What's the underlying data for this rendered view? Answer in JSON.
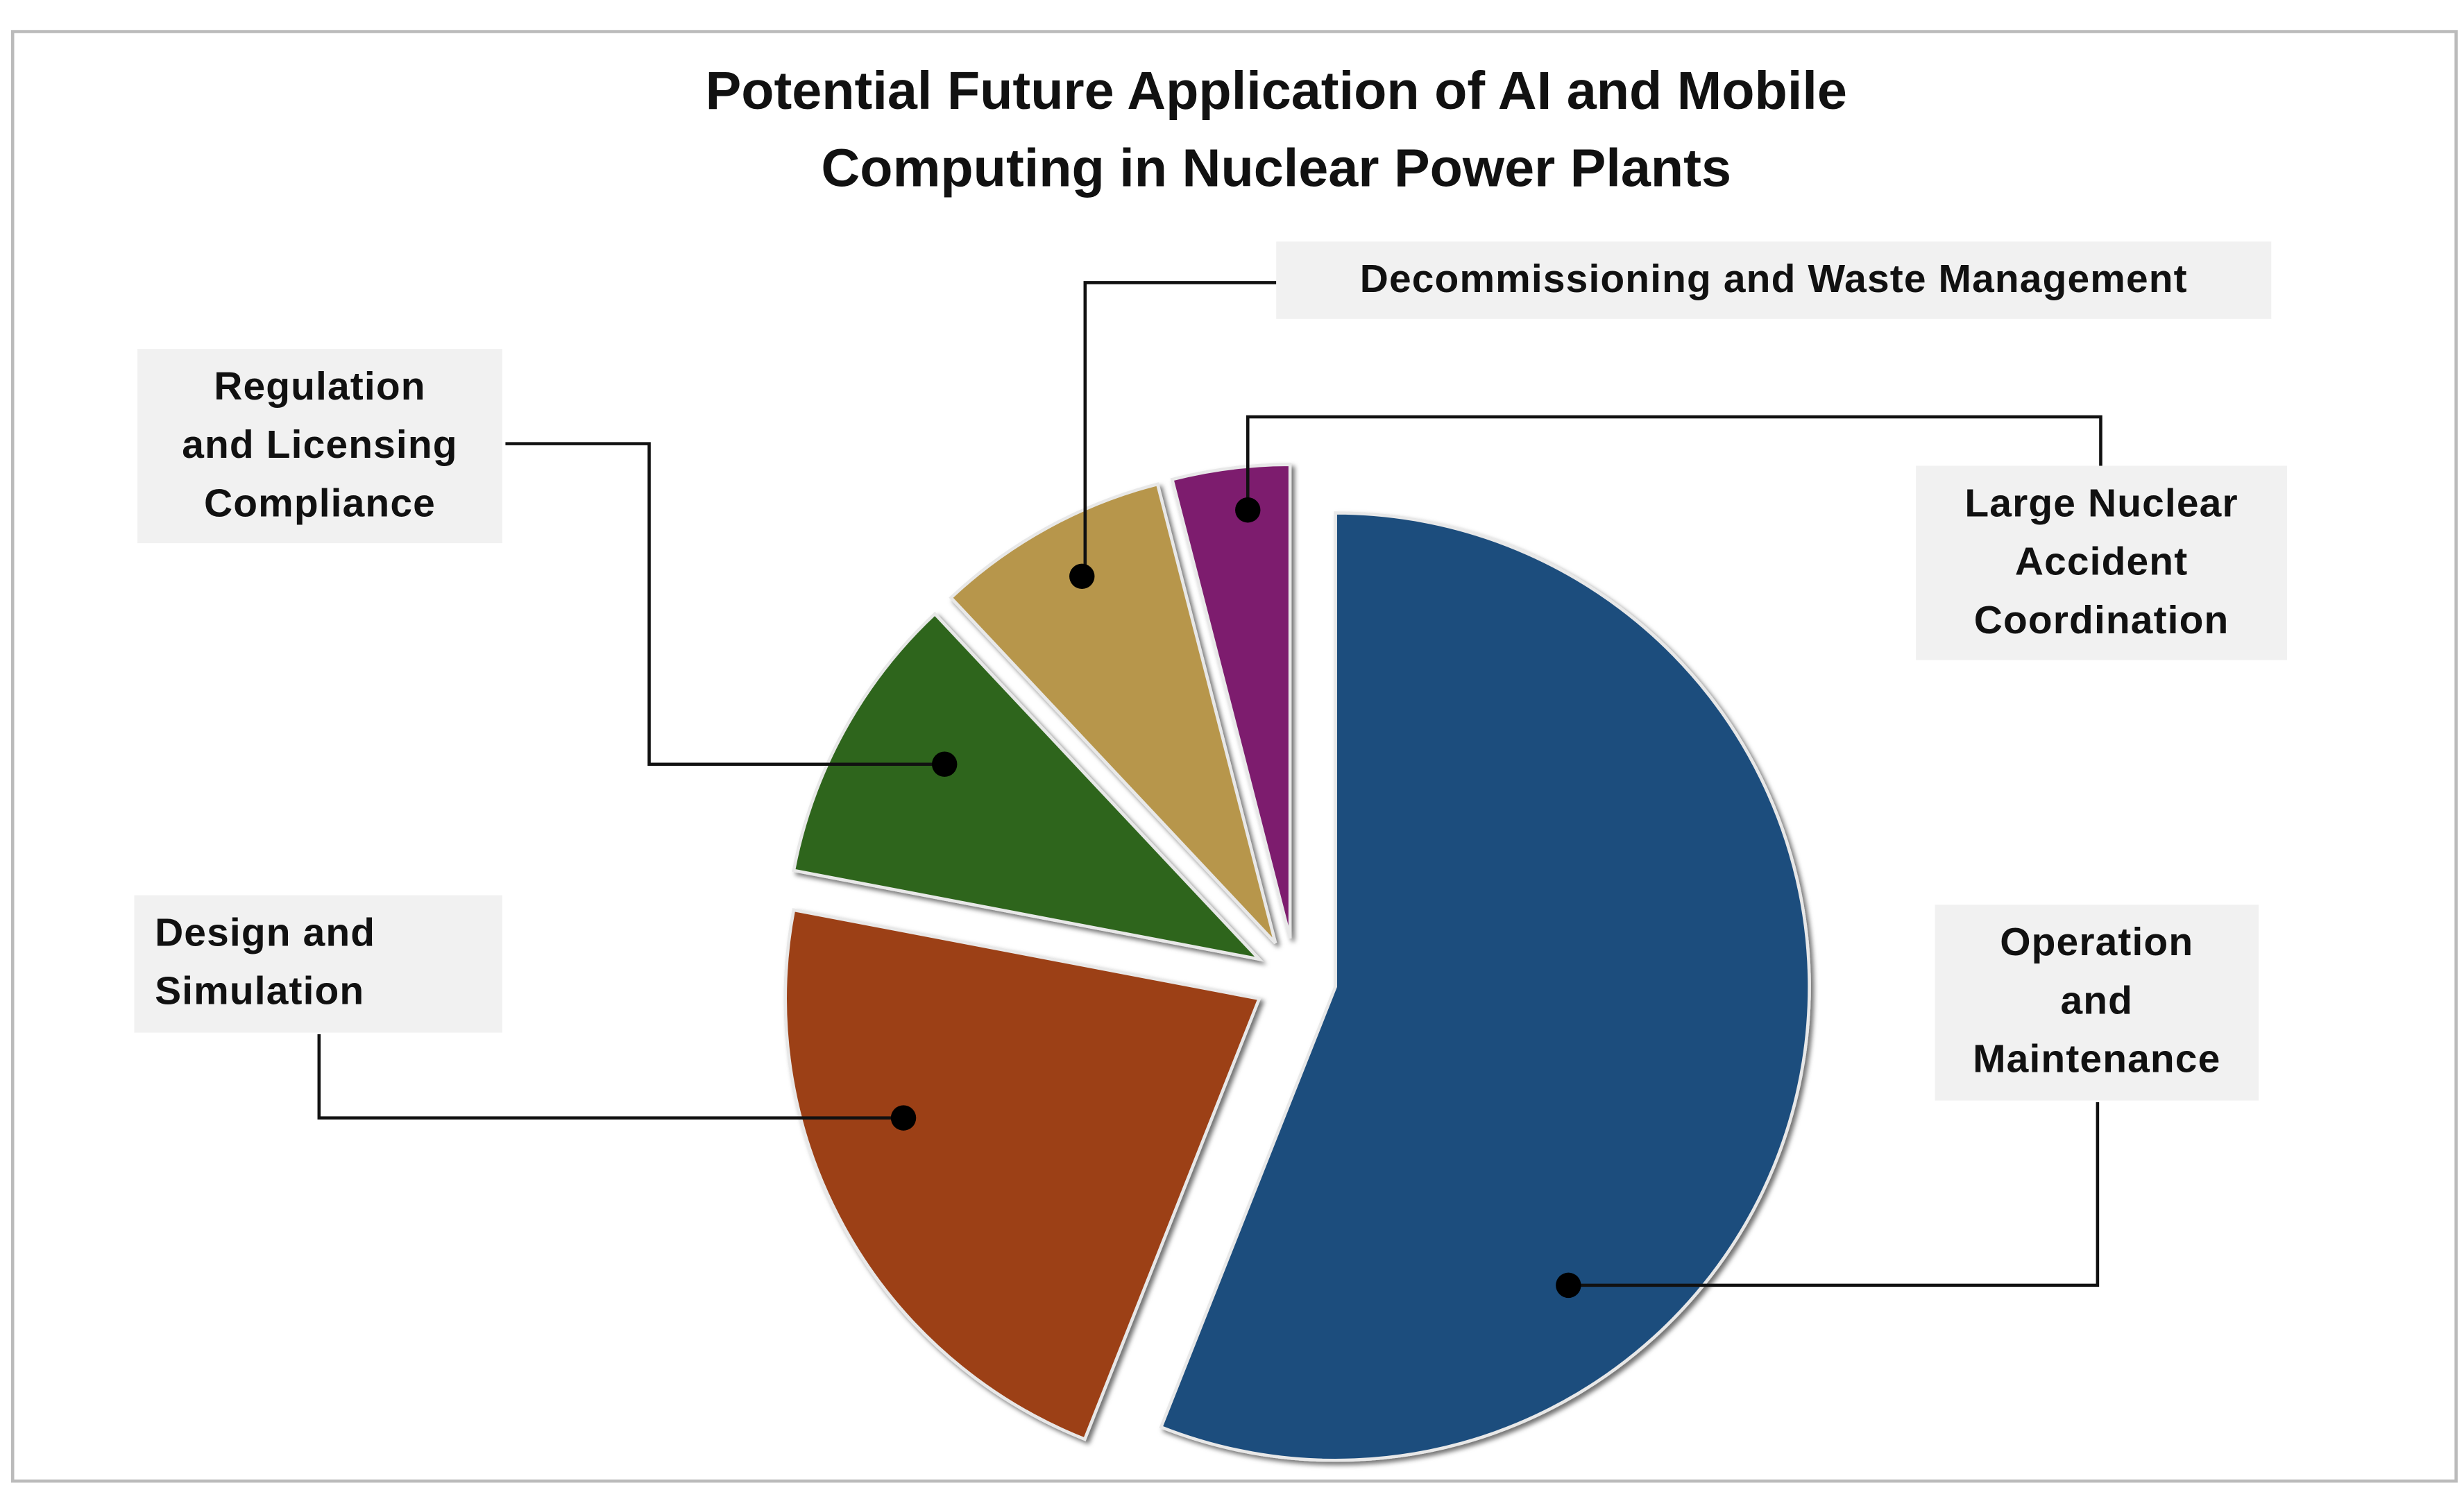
{
  "chart_data": {
    "type": "pie",
    "title": "Potential Future Application of AI and Mobile Computing in Nuclear Power Plants",
    "categories": [
      "Operation and Maintenance",
      "Design and Simulation",
      "Regulation and Licensing Compliance",
      "Decommissioning and Waste Management",
      "Large Nuclear Accident Coordination"
    ],
    "values": [
      56,
      22,
      10,
      8,
      4
    ],
    "colors": [
      "#1f4e7d",
      "#9c3f13",
      "#2f651c",
      "#b7964b",
      "#7d1f6e"
    ]
  }
}
